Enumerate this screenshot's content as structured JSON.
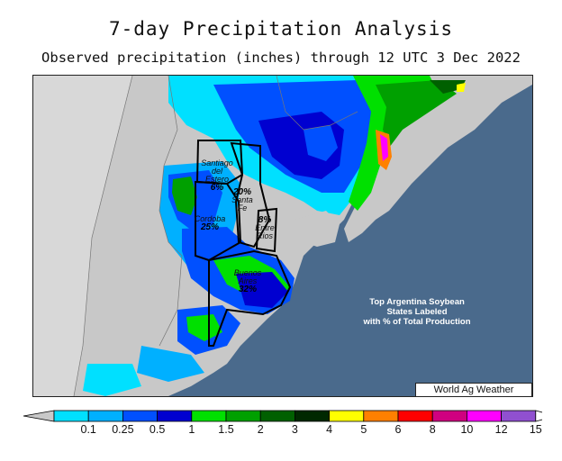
{
  "title": "7-day Precipitation Analysis",
  "subtitle": "Observed precipitation (inches) through 12 UTC 3 Dec 2022",
  "states": [
    {
      "name_lines": [
        "Santiago",
        "del",
        "Estero"
      ],
      "pct": "6%"
    },
    {
      "name_lines": [
        "Santa",
        "Fe"
      ],
      "pct": "20%"
    },
    {
      "name_lines": [
        "Entre",
        "Rios"
      ],
      "pct": "8%"
    },
    {
      "name_lines": [
        "Cordoba"
      ],
      "pct": "25%"
    },
    {
      "name_lines": [
        "Buenos",
        "Aires"
      ],
      "pct": "32%"
    }
  ],
  "note_lines": [
    "Top Argentina Soybean",
    "States Labeled",
    "with % of Total Production"
  ],
  "credit": "World Ag Weather",
  "legend": {
    "ticks": [
      "0.1",
      "0.25",
      "0.5",
      "1",
      "1.5",
      "2",
      "3",
      "4",
      "5",
      "6",
      "8",
      "10",
      "12",
      "15"
    ],
    "colors": [
      "#00e0ff",
      "#00b0ff",
      "#0050ff",
      "#0000d0",
      "#00e000",
      "#00a000",
      "#006000",
      "#002800",
      "#ffff00",
      "#ff8000",
      "#ff0000",
      "#d00080",
      "#ff00ff",
      "#9050d0"
    ]
  }
}
